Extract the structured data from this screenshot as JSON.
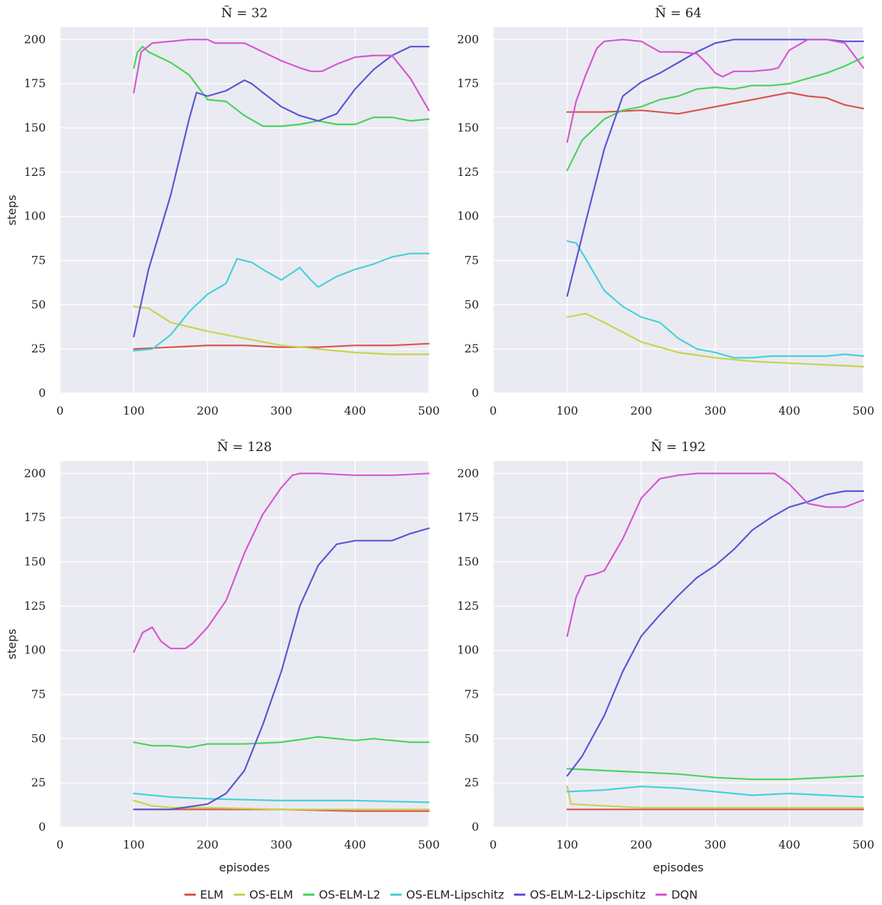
{
  "legend_series": [
    "ELM",
    "OS-ELM",
    "OS-ELM-L2",
    "OS-ELM-Lipschitz",
    "OS-ELM-L2-Lipschitz",
    "DQN"
  ],
  "colors": {
    "ELM": "#d9534b",
    "OS-ELM": "#c9d34a",
    "OS-ELM-L2": "#47d35c",
    "OS-ELM-Lipschitz": "#46d1d7",
    "OS-ELM-L2-Lipschitz": "#5b54d4",
    "DQN": "#d655cf"
  },
  "chart_data": [
    {
      "type": "line",
      "title": "Ñ = 32",
      "xlabel": "",
      "ylabel": "steps",
      "xlim": [
        0,
        500
      ],
      "ylim": [
        0,
        207
      ],
      "xticks": [
        0,
        100,
        200,
        300,
        400,
        500
      ],
      "yticks": [
        0,
        25,
        50,
        75,
        100,
        125,
        150,
        175,
        200
      ],
      "grid": true,
      "series": [
        {
          "name": "ELM",
          "x": [
            100,
            150,
            200,
            250,
            300,
            350,
            400,
            450,
            500
          ],
          "y": [
            25,
            26,
            27,
            27,
            26,
            26,
            27,
            27,
            28
          ]
        },
        {
          "name": "OS-ELM",
          "x": [
            100,
            120,
            150,
            200,
            250,
            300,
            350,
            400,
            450,
            500
          ],
          "y": [
            49,
            48,
            40,
            35,
            31,
            27,
            25,
            23,
            22,
            22
          ]
        },
        {
          "name": "OS-ELM-L2",
          "x": [
            100,
            105,
            112,
            120,
            150,
            175,
            200,
            225,
            250,
            275,
            300,
            325,
            350,
            375,
            400,
            425,
            450,
            475,
            500
          ],
          "y": [
            184,
            193,
            196,
            193,
            187,
            180,
            166,
            165,
            157,
            151,
            151,
            152,
            154,
            152,
            152,
            156,
            156,
            154,
            155
          ]
        },
        {
          "name": "OS-ELM-Lipschitz",
          "x": [
            100,
            125,
            150,
            175,
            200,
            225,
            240,
            250,
            260,
            275,
            300,
            325,
            340,
            350,
            375,
            400,
            425,
            450,
            475,
            500
          ],
          "y": [
            24,
            25,
            33,
            46,
            56,
            62,
            76,
            75,
            74,
            70,
            64,
            71,
            64,
            60,
            66,
            70,
            73,
            77,
            79,
            79
          ]
        },
        {
          "name": "OS-ELM-L2-Lipschitz",
          "x": [
            100,
            120,
            150,
            175,
            185,
            200,
            225,
            250,
            260,
            275,
            300,
            325,
            350,
            375,
            400,
            425,
            450,
            475,
            500
          ],
          "y": [
            32,
            70,
            112,
            155,
            170,
            168,
            171,
            177,
            175,
            170,
            162,
            157,
            154,
            158,
            172,
            183,
            191,
            196,
            196
          ]
        },
        {
          "name": "DQN",
          "x": [
            100,
            110,
            125,
            150,
            175,
            200,
            210,
            230,
            250,
            275,
            300,
            325,
            340,
            355,
            375,
            400,
            425,
            450,
            475,
            500
          ],
          "y": [
            170,
            193,
            198,
            199,
            200,
            200,
            198,
            198,
            198,
            193,
            188,
            184,
            182,
            182,
            186,
            190,
            191,
            191,
            178,
            160
          ]
        }
      ]
    },
    {
      "type": "line",
      "title": "Ñ = 64",
      "xlabel": "",
      "ylabel": "",
      "xlim": [
        0,
        500
      ],
      "ylim": [
        0,
        207
      ],
      "xticks": [
        0,
        100,
        200,
        300,
        400,
        500
      ],
      "yticks": [
        0,
        25,
        50,
        75,
        100,
        125,
        150,
        175,
        200
      ],
      "grid": true,
      "series": [
        {
          "name": "ELM",
          "x": [
            100,
            150,
            200,
            250,
            300,
            350,
            400,
            425,
            450,
            475,
            500
          ],
          "y": [
            159,
            159,
            160,
            158,
            162,
            166,
            170,
            168,
            167,
            163,
            161
          ]
        },
        {
          "name": "OS-ELM",
          "x": [
            100,
            125,
            150,
            200,
            250,
            300,
            350,
            400,
            450,
            500
          ],
          "y": [
            43,
            45,
            40,
            29,
            23,
            20,
            18,
            17,
            16,
            15
          ]
        },
        {
          "name": "OS-ELM-L2",
          "x": [
            100,
            120,
            150,
            175,
            200,
            225,
            250,
            275,
            300,
            325,
            350,
            375,
            400,
            425,
            450,
            475,
            500
          ],
          "y": [
            126,
            143,
            155,
            160,
            162,
            166,
            168,
            172,
            173,
            172,
            174,
            174,
            175,
            178,
            181,
            185,
            190
          ]
        },
        {
          "name": "OS-ELM-Lipschitz",
          "x": [
            100,
            112,
            125,
            150,
            175,
            200,
            225,
            250,
            275,
            300,
            325,
            350,
            375,
            400,
            425,
            450,
            475,
            500
          ],
          "y": [
            86,
            85,
            76,
            58,
            49,
            43,
            40,
            31,
            25,
            23,
            20,
            20,
            21,
            21,
            21,
            21,
            22,
            21
          ]
        },
        {
          "name": "OS-ELM-L2-Lipschitz",
          "x": [
            100,
            115,
            125,
            150,
            175,
            200,
            225,
            250,
            275,
            300,
            325,
            350,
            375,
            400,
            425,
            450,
            475,
            500
          ],
          "y": [
            55,
            80,
            97,
            138,
            168,
            176,
            181,
            187,
            193,
            198,
            200,
            200,
            200,
            200,
            200,
            200,
            199,
            199
          ]
        },
        {
          "name": "DQN",
          "x": [
            100,
            112,
            125,
            140,
            150,
            175,
            200,
            225,
            250,
            275,
            290,
            300,
            310,
            325,
            350,
            375,
            385,
            400,
            425,
            450,
            475,
            500
          ],
          "y": [
            142,
            165,
            180,
            195,
            199,
            200,
            199,
            193,
            193,
            192,
            186,
            181,
            179,
            182,
            182,
            183,
            184,
            194,
            200,
            200,
            198,
            184
          ]
        }
      ]
    },
    {
      "type": "line",
      "title": "Ñ = 128",
      "xlabel": "episodes",
      "ylabel": "steps",
      "xlim": [
        0,
        500
      ],
      "ylim": [
        0,
        207
      ],
      "xticks": [
        0,
        100,
        200,
        300,
        400,
        500
      ],
      "yticks": [
        0,
        25,
        50,
        75,
        100,
        125,
        150,
        175,
        200
      ],
      "grid": true,
      "series": [
        {
          "name": "ELM",
          "x": [
            100,
            200,
            300,
            400,
            500
          ],
          "y": [
            10,
            10,
            10,
            9,
            9
          ]
        },
        {
          "name": "OS-ELM",
          "x": [
            100,
            125,
            150,
            200,
            300,
            400,
            500
          ],
          "y": [
            15,
            12,
            11,
            11,
            10,
            10,
            10
          ]
        },
        {
          "name": "OS-ELM-L2",
          "x": [
            100,
            125,
            150,
            175,
            200,
            250,
            300,
            350,
            375,
            400,
            425,
            450,
            475,
            500
          ],
          "y": [
            48,
            46,
            46,
            45,
            47,
            47,
            48,
            51,
            50,
            49,
            50,
            49,
            48,
            48
          ]
        },
        {
          "name": "OS-ELM-Lipschitz",
          "x": [
            100,
            150,
            200,
            300,
            400,
            500
          ],
          "y": [
            19,
            17,
            16,
            15,
            15,
            14
          ]
        },
        {
          "name": "OS-ELM-L2-Lipschitz",
          "x": [
            100,
            150,
            200,
            225,
            250,
            275,
            300,
            325,
            350,
            375,
            400,
            425,
            450,
            475,
            500
          ],
          "y": [
            10,
            10,
            13,
            19,
            32,
            58,
            88,
            125,
            148,
            160,
            162,
            162,
            162,
            166,
            169
          ]
        },
        {
          "name": "DQN",
          "x": [
            100,
            112,
            125,
            137,
            150,
            170,
            180,
            200,
            225,
            250,
            275,
            300,
            315,
            325,
            350,
            400,
            450,
            500
          ],
          "y": [
            99,
            110,
            113,
            105,
            101,
            101,
            104,
            113,
            128,
            155,
            177,
            192,
            199,
            200,
            200,
            199,
            199,
            200
          ]
        }
      ]
    },
    {
      "type": "line",
      "title": "Ñ = 192",
      "xlabel": "episodes",
      "ylabel": "",
      "xlim": [
        0,
        500
      ],
      "ylim": [
        0,
        207
      ],
      "xticks": [
        0,
        100,
        200,
        300,
        400,
        500
      ],
      "yticks": [
        0,
        25,
        50,
        75,
        100,
        125,
        150,
        175,
        200
      ],
      "grid": true,
      "series": [
        {
          "name": "ELM",
          "x": [
            100,
            200,
            300,
            400,
            500
          ],
          "y": [
            10,
            10,
            10,
            10,
            10
          ]
        },
        {
          "name": "OS-ELM",
          "x": [
            100,
            105,
            150,
            200,
            300,
            400,
            500
          ],
          "y": [
            23,
            13,
            12,
            11,
            11,
            11,
            11
          ]
        },
        {
          "name": "OS-ELM-L2",
          "x": [
            100,
            150,
            200,
            250,
            300,
            350,
            400,
            450,
            500
          ],
          "y": [
            33,
            32,
            31,
            30,
            28,
            27,
            27,
            28,
            29
          ]
        },
        {
          "name": "OS-ELM-Lipschitz",
          "x": [
            100,
            150,
            200,
            250,
            300,
            350,
            400,
            450,
            500
          ],
          "y": [
            20,
            21,
            23,
            22,
            20,
            18,
            19,
            18,
            17
          ]
        },
        {
          "name": "OS-ELM-L2-Lipschitz",
          "x": [
            100,
            120,
            150,
            175,
            200,
            225,
            250,
            275,
            300,
            325,
            350,
            375,
            400,
            425,
            450,
            475,
            500
          ],
          "y": [
            29,
            40,
            63,
            88,
            108,
            120,
            131,
            141,
            148,
            157,
            168,
            175,
            181,
            184,
            188,
            190,
            190
          ]
        },
        {
          "name": "DQN",
          "x": [
            100,
            112,
            125,
            137,
            150,
            175,
            200,
            225,
            250,
            275,
            300,
            350,
            380,
            400,
            425,
            450,
            475,
            500
          ],
          "y": [
            108,
            130,
            142,
            143,
            145,
            163,
            186,
            197,
            199,
            200,
            200,
            200,
            200,
            194,
            183,
            181,
            181,
            185
          ]
        }
      ]
    }
  ]
}
